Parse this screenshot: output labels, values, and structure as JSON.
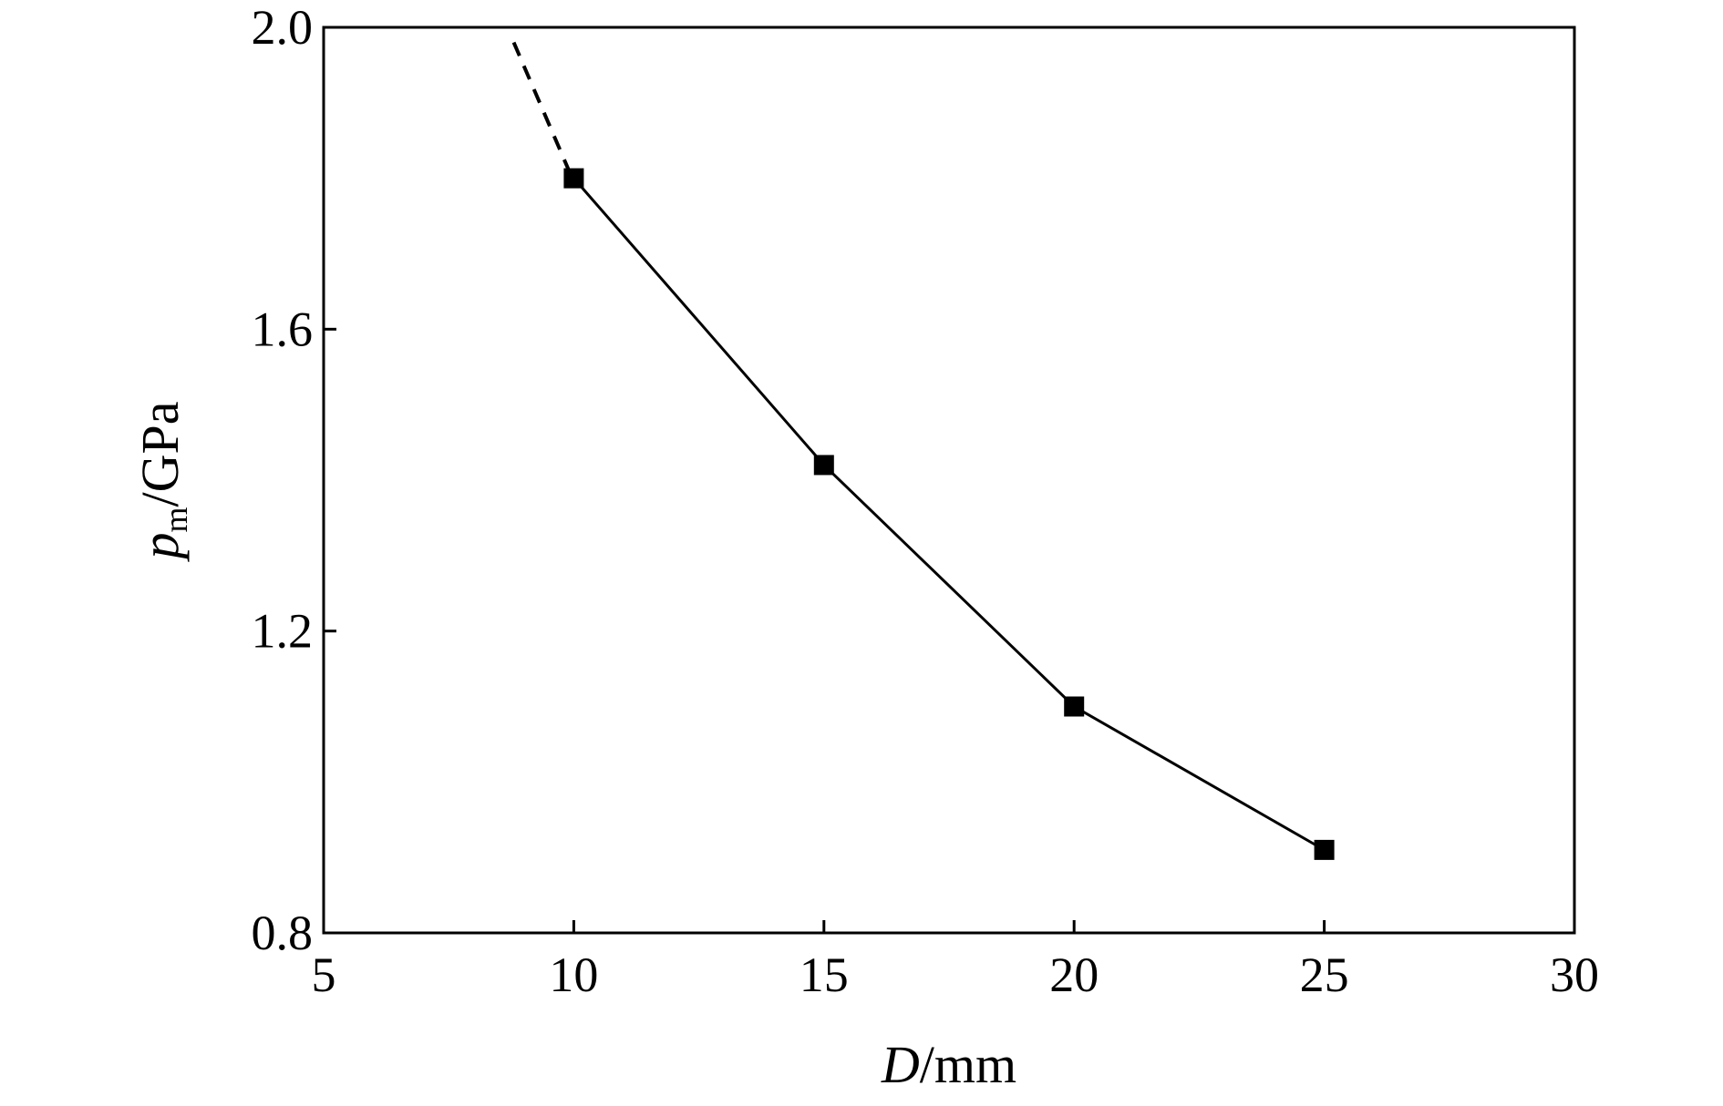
{
  "chart_data": {
    "type": "line",
    "x": [
      10,
      15,
      20,
      25
    ],
    "series": [
      {
        "values": [
          1.8,
          1.42,
          1.1,
          0.91
        ]
      }
    ],
    "extrapolation": {
      "x": [
        8.8,
        10
      ],
      "values": [
        1.98,
        1.8
      ],
      "style": "dashed"
    },
    "xlim": [
      5,
      30
    ],
    "ylim": [
      0.8,
      2.0
    ],
    "xticks": [
      5,
      10,
      15,
      20,
      25,
      30
    ],
    "xtick_labels": [
      "5",
      "10",
      "15",
      "20",
      "25",
      "30"
    ],
    "yticks": [
      0.8,
      1.2,
      1.6,
      2.0
    ],
    "ytick_labels": [
      "0.8",
      "1.2",
      "1.6",
      "2.0"
    ],
    "xlabel": {
      "var": "D",
      "unit": "/mm"
    },
    "ylabel": {
      "var": "p",
      "sub": "m",
      "unit": "/GPa"
    },
    "marker": "square",
    "grid": false,
    "legend": "none",
    "color": "#000000"
  }
}
